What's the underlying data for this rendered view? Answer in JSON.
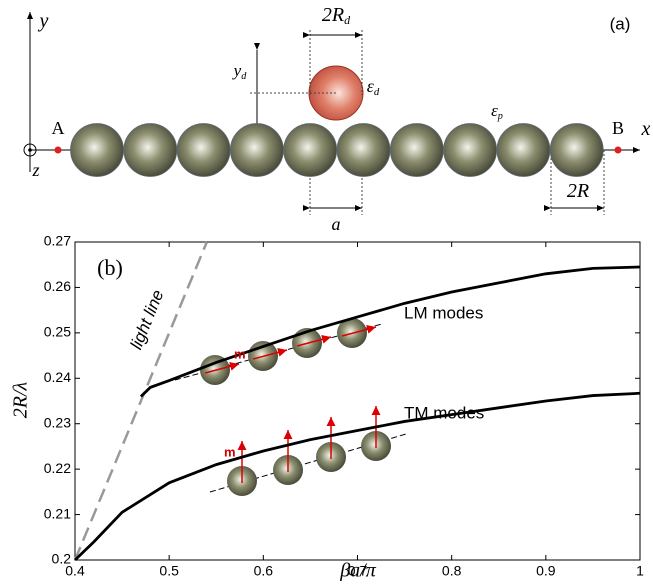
{
  "diagram": {
    "panel_label": "(a)",
    "labels": [
      {
        "text": "y"
      },
      {
        "text": "x"
      },
      {
        "text": "z"
      },
      {
        "text": "A"
      },
      {
        "text": "B"
      },
      {
        "text": "2R",
        "sub": "d"
      },
      {
        "text": "y",
        "sub": "d"
      },
      {
        "text": "ε",
        "sub": "d"
      },
      {
        "text": "ε",
        "sub": "p"
      },
      {
        "text": "a"
      },
      {
        "text": "2R"
      }
    ]
  },
  "chart_data": {
    "type": "line",
    "panel_label": "(b)",
    "x_label": "βa/π",
    "y_label": "2R/λ",
    "xlim": [
      0.4,
      1
    ],
    "ylim": [
      0.2,
      0.27
    ],
    "xticks": [
      0.4,
      0.5,
      0.6,
      0.7,
      0.8,
      0.9,
      1
    ],
    "yticks": [
      0.2,
      0.21,
      0.22,
      0.23,
      0.24,
      0.25,
      0.26,
      0.27
    ],
    "inset_labels": [
      "m",
      "m"
    ],
    "series": [
      {
        "name": "light line",
        "color": "#999999",
        "dashed": true,
        "x": [
          0.4,
          0.54
        ],
        "values": [
          0.2,
          0.27
        ]
      },
      {
        "name": "LM modes",
        "color": "#000000",
        "dashed": false,
        "x": [
          0.47,
          0.48,
          0.5,
          0.55,
          0.6,
          0.65,
          0.7,
          0.75,
          0.8,
          0.85,
          0.9,
          0.95,
          1
        ],
        "values": [
          0.236,
          0.238,
          0.2395,
          0.2435,
          0.247,
          0.2505,
          0.2535,
          0.2565,
          0.259,
          0.261,
          0.263,
          0.2642,
          0.2645
        ]
      },
      {
        "name": "TM modes",
        "color": "#000000",
        "dashed": false,
        "x": [
          0.4,
          0.42,
          0.45,
          0.5,
          0.55,
          0.6,
          0.65,
          0.7,
          0.75,
          0.8,
          0.85,
          0.9,
          0.95,
          1
        ],
        "values": [
          0.2,
          0.204,
          0.2105,
          0.217,
          0.221,
          0.224,
          0.2265,
          0.2285,
          0.2305,
          0.232,
          0.2335,
          0.235,
          0.2362,
          0.2367
        ]
      }
    ]
  }
}
